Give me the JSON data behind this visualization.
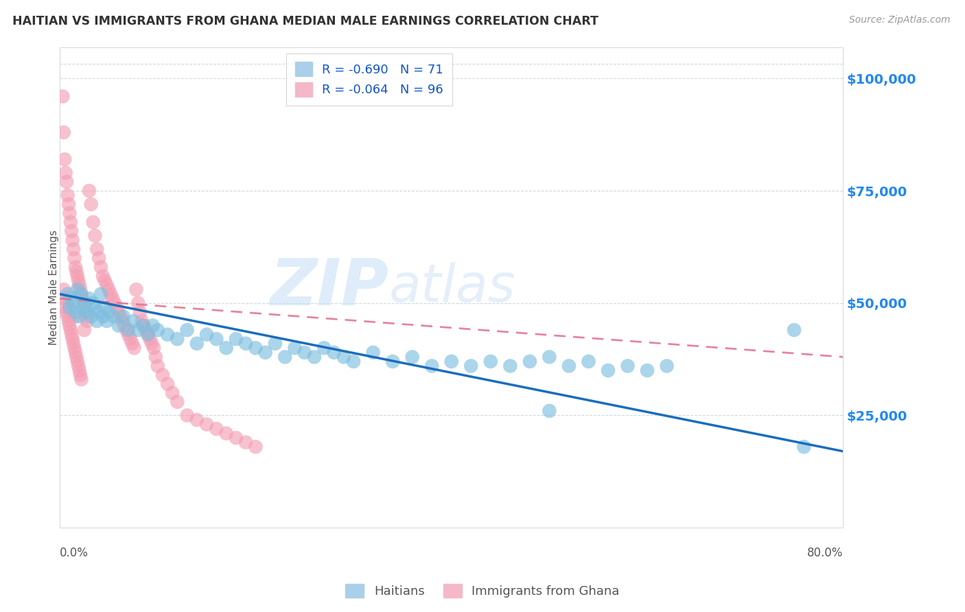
{
  "title": "HAITIAN VS IMMIGRANTS FROM GHANA MEDIAN MALE EARNINGS CORRELATION CHART",
  "source": "Source: ZipAtlas.com",
  "ylabel": "Median Male Earnings",
  "yticks": [
    0,
    25000,
    50000,
    75000,
    100000
  ],
  "ytick_labels": [
    "",
    "$25,000",
    "$50,000",
    "$75,000",
    "$100,000"
  ],
  "xmin": 0.0,
  "xmax": 0.8,
  "ymin": 0,
  "ymax": 107000,
  "blue_R": -0.69,
  "blue_N": 71,
  "pink_R": -0.064,
  "pink_N": 96,
  "blue_color": "#7fbfdf",
  "pink_color": "#f4a0b5",
  "blue_line_color": "#1a6dbd",
  "pink_line_color": "#e07090",
  "watermark_zip": "ZIP",
  "watermark_atlas": "atlas",
  "legend_label_blue": "Haitians",
  "legend_label_pink": "Immigrants from Ghana",
  "blue_line_x0": 0.0,
  "blue_line_y0": 52000,
  "blue_line_x1": 0.8,
  "blue_line_y1": 17000,
  "pink_line_x0": 0.0,
  "pink_line_y0": 51000,
  "pink_line_x1": 0.8,
  "pink_line_y1": 38000,
  "blue_x": [
    0.008,
    0.01,
    0.012,
    0.014,
    0.016,
    0.018,
    0.02,
    0.022,
    0.024,
    0.026,
    0.028,
    0.03,
    0.032,
    0.034,
    0.036,
    0.038,
    0.04,
    0.042,
    0.044,
    0.046,
    0.048,
    0.05,
    0.055,
    0.06,
    0.065,
    0.07,
    0.075,
    0.08,
    0.085,
    0.09,
    0.095,
    0.1,
    0.11,
    0.12,
    0.13,
    0.14,
    0.15,
    0.16,
    0.17,
    0.18,
    0.19,
    0.2,
    0.21,
    0.22,
    0.23,
    0.24,
    0.25,
    0.26,
    0.27,
    0.28,
    0.29,
    0.3,
    0.32,
    0.34,
    0.36,
    0.38,
    0.4,
    0.42,
    0.44,
    0.46,
    0.48,
    0.5,
    0.52,
    0.54,
    0.56,
    0.58,
    0.6,
    0.62,
    0.5,
    0.75,
    0.76
  ],
  "blue_y": [
    52000,
    49000,
    51000,
    50000,
    48000,
    53000,
    47000,
    52000,
    49000,
    50000,
    48000,
    51000,
    47000,
    50000,
    49000,
    46000,
    48000,
    52000,
    47000,
    49000,
    46000,
    48000,
    47000,
    45000,
    47000,
    44000,
    46000,
    44000,
    45000,
    43000,
    45000,
    44000,
    43000,
    42000,
    44000,
    41000,
    43000,
    42000,
    40000,
    42000,
    41000,
    40000,
    39000,
    41000,
    38000,
    40000,
    39000,
    38000,
    40000,
    39000,
    38000,
    37000,
    39000,
    37000,
    38000,
    36000,
    37000,
    36000,
    37000,
    36000,
    37000,
    38000,
    36000,
    37000,
    35000,
    36000,
    35000,
    36000,
    26000,
    44000,
    18000
  ],
  "pink_x": [
    0.003,
    0.004,
    0.005,
    0.006,
    0.007,
    0.008,
    0.009,
    0.01,
    0.011,
    0.012,
    0.013,
    0.014,
    0.015,
    0.016,
    0.017,
    0.018,
    0.019,
    0.02,
    0.021,
    0.022,
    0.023,
    0.024,
    0.025,
    0.026,
    0.027,
    0.028,
    0.03,
    0.032,
    0.034,
    0.036,
    0.038,
    0.04,
    0.042,
    0.044,
    0.046,
    0.048,
    0.05,
    0.052,
    0.054,
    0.056,
    0.058,
    0.06,
    0.062,
    0.064,
    0.066,
    0.068,
    0.07,
    0.072,
    0.074,
    0.076,
    0.078,
    0.08,
    0.082,
    0.084,
    0.086,
    0.088,
    0.09,
    0.092,
    0.094,
    0.096,
    0.098,
    0.1,
    0.105,
    0.11,
    0.115,
    0.12,
    0.13,
    0.14,
    0.15,
    0.16,
    0.17,
    0.18,
    0.19,
    0.2,
    0.004,
    0.005,
    0.006,
    0.007,
    0.008,
    0.009,
    0.01,
    0.011,
    0.012,
    0.013,
    0.014,
    0.015,
    0.016,
    0.017,
    0.018,
    0.019,
    0.02,
    0.021,
    0.022,
    0.008,
    0.015,
    0.025
  ],
  "pink_y": [
    96000,
    88000,
    82000,
    79000,
    77000,
    74000,
    72000,
    70000,
    68000,
    66000,
    64000,
    62000,
    60000,
    58000,
    57000,
    56000,
    55000,
    54000,
    53000,
    52000,
    51000,
    50000,
    49000,
    48000,
    47000,
    46000,
    75000,
    72000,
    68000,
    65000,
    62000,
    60000,
    58000,
    56000,
    55000,
    54000,
    53000,
    52000,
    51000,
    50000,
    49000,
    48000,
    47000,
    46000,
    45000,
    44000,
    43000,
    42000,
    41000,
    40000,
    53000,
    50000,
    48000,
    46000,
    45000,
    44000,
    43000,
    42000,
    41000,
    40000,
    38000,
    36000,
    34000,
    32000,
    30000,
    28000,
    25000,
    24000,
    23000,
    22000,
    21000,
    20000,
    19000,
    18000,
    53000,
    51000,
    49000,
    48000,
    47000,
    46000,
    45000,
    44000,
    43000,
    42000,
    41000,
    40000,
    39000,
    38000,
    37000,
    36000,
    35000,
    34000,
    33000,
    50000,
    47000,
    44000
  ]
}
